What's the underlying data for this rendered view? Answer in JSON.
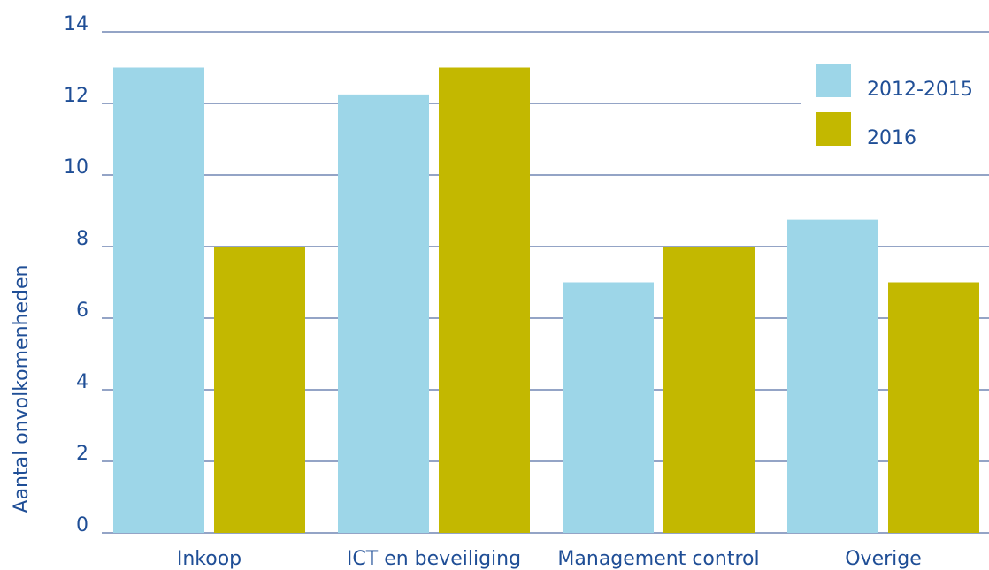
{
  "chart_data": {
    "type": "bar",
    "y_label": "Aantal onvolkomenheden",
    "categories": [
      "Inkoop",
      "ICT en beveiliging",
      "Management control",
      "Overige"
    ],
    "series": [
      {
        "name": "2012-2015",
        "color": "#9dd6e8",
        "values": [
          13,
          12.25,
          7,
          8.75
        ]
      },
      {
        "name": "2016",
        "color": "#c3b800",
        "values": [
          8,
          13,
          8,
          7
        ]
      }
    ],
    "ylim": [
      0,
      14
    ],
    "yticks": [
      0,
      2,
      4,
      6,
      8,
      10,
      12,
      14
    ],
    "grid": true,
    "legend": "upper right"
  }
}
